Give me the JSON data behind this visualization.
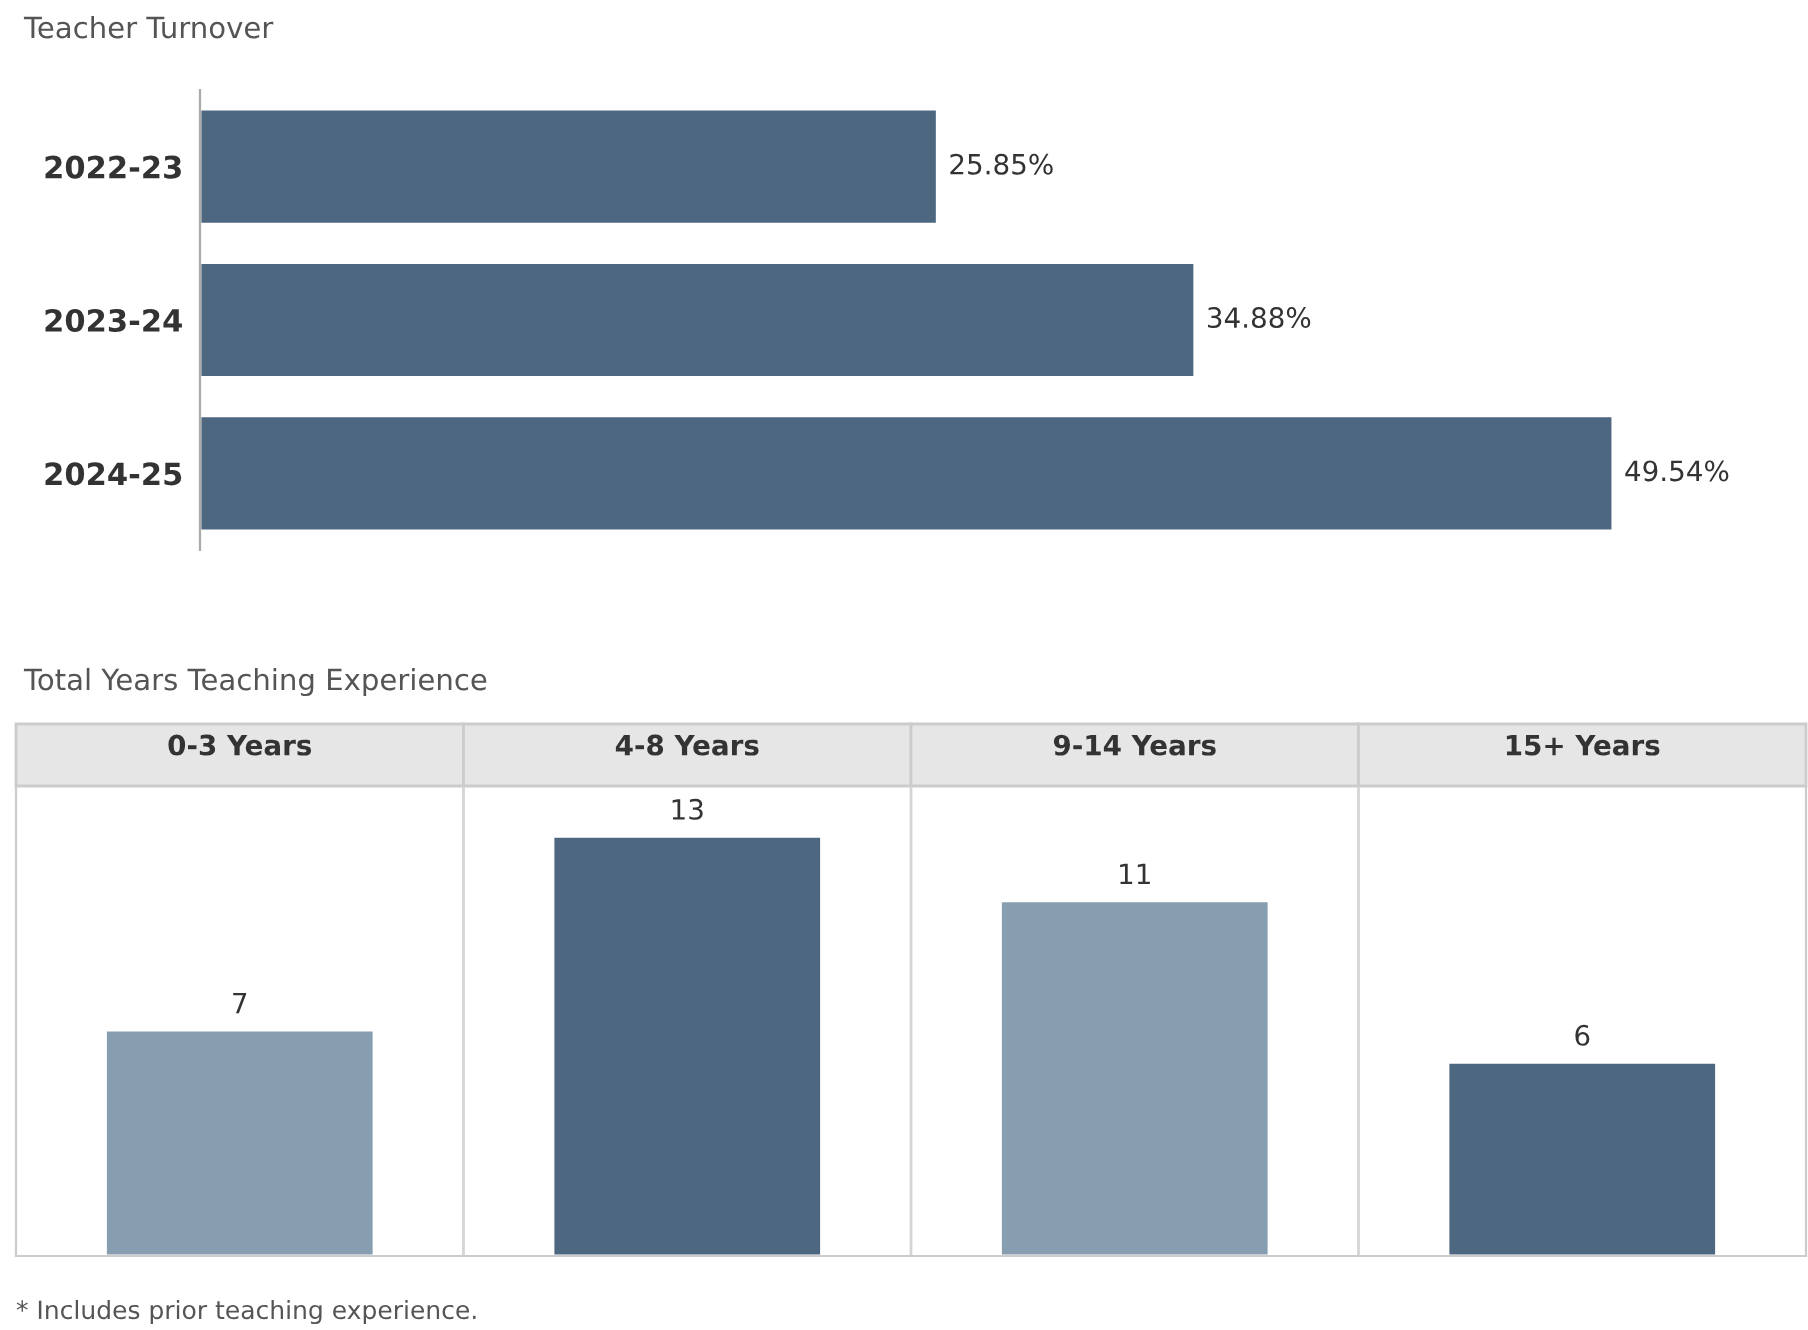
{
  "chart_data": [
    {
      "type": "bar",
      "title": "Teacher Turnover",
      "orientation": "horizontal",
      "categories": [
        "2022-23",
        "2023-24",
        "2024-25"
      ],
      "values": [
        25.85,
        34.88,
        49.54
      ],
      "color": "#4e6780",
      "data_labels": true,
      "value_labels": [
        "25.85%",
        "34.88%",
        "49.54%"
      ],
      "grid": false,
      "legend": false
    },
    {
      "type": "bar",
      "title": "Total Years Teaching Experience",
      "categories": [
        "0-3 Years",
        "4-8 Years",
        "9-14 Years",
        "15+ Years"
      ],
      "values": [
        7,
        13,
        11,
        6
      ],
      "colors": [
        "#879db0",
        "#4e6780",
        "#879db0",
        "#4e6780"
      ],
      "data_labels": true,
      "grid": false,
      "legend": false,
      "annotations": [
        "* Includes prior teaching experience."
      ]
    }
  ]
}
